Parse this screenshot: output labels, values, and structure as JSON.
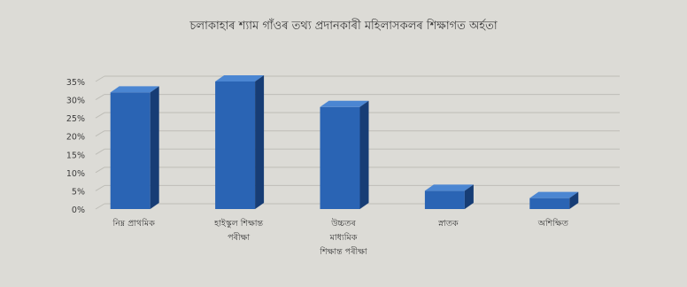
{
  "chart_data": {
    "type": "bar",
    "title": "চলাকাহাৰ শ্যাম গাঁওৰ তথ্য প্রদানকাৰী মহিলাসকলৰ শিক্ষাগত অৰ্হতা",
    "xlabel": "",
    "ylabel": "",
    "ylim": [
      0,
      35
    ],
    "yticks": [
      "0%",
      "5%",
      "10%",
      "15%",
      "20%",
      "25%",
      "30%",
      "35%"
    ],
    "categories": [
      [
        "নিম্ন প্রাথমিক"
      ],
      [
        "হাইস্কুল শিক্ষান্ত",
        "পৰীক্ষা"
      ],
      [
        "উচ্চতৰ",
        "মাধ্যমিক",
        "শিক্ষান্ত পৰীক্ষা"
      ],
      [
        "স্নাতক"
      ],
      [
        "অশিক্ষিত"
      ]
    ],
    "values": [
      32,
      35,
      28,
      5,
      3
    ],
    "colors": {
      "bar_front": "#2a64b4",
      "bar_top": "#4b86d2",
      "bar_side": "#173d75",
      "grid": "#bebdb7",
      "text": "#3c3c3c",
      "background": "#dcdbd6"
    },
    "grid": true,
    "legend": "none"
  }
}
